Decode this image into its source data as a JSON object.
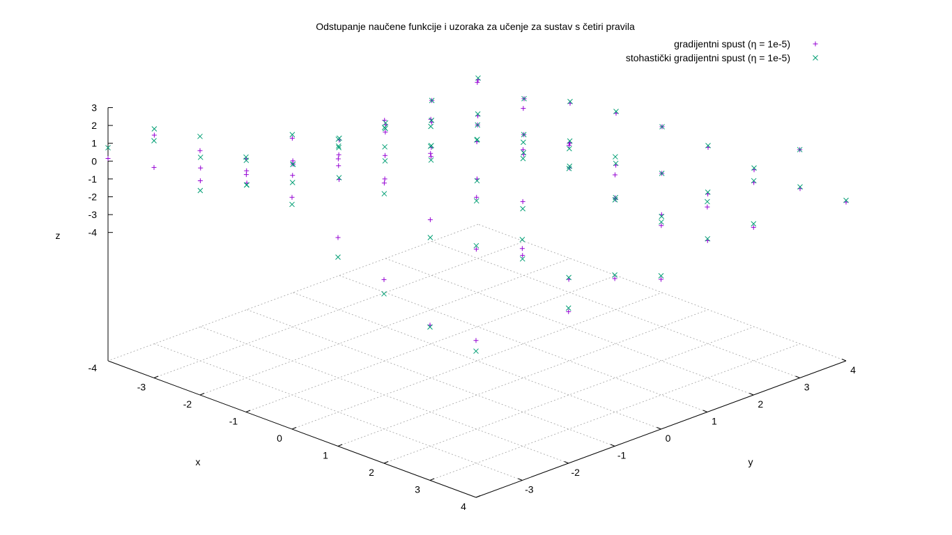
{
  "chart_data": {
    "type": "scatter",
    "title": "Odstupanje naučene funkcije i uzoraka za učenje za sustav s četiri pravila",
    "xlabel": "x",
    "ylabel": "y",
    "zlabel": "z",
    "xlim": [
      -4,
      4
    ],
    "ylim": [
      -4,
      4
    ],
    "zlim": [
      -4,
      3
    ],
    "x_ticks": [
      "-3",
      "-2",
      "-1",
      "0",
      "1",
      "2",
      "3",
      "4"
    ],
    "y_ticks": [
      "-3",
      "-2",
      "-1",
      "0",
      "1",
      "2",
      "3",
      "4"
    ],
    "z_ticks": [
      "3",
      "2",
      "1",
      "0",
      "-1",
      "-2",
      "-3",
      "-4"
    ],
    "floor_label": "-4",
    "grid": true,
    "legend_position": "top-right",
    "colors": {
      "series1": "#9400d3",
      "series2": "#009e73"
    },
    "series": [
      {
        "name": "gradijentni spust (η = 1e-5)",
        "marker": "+",
        "points": [
          [
            -4,
            -4,
            0.15
          ],
          [
            -3,
            -4,
            0.6
          ],
          [
            -2,
            -4,
            2.5
          ],
          [
            -1,
            -4,
            3.0
          ],
          [
            0,
            -4,
            1.8
          ],
          [
            1,
            -4,
            0.5
          ],
          [
            2,
            -4,
            -0.9
          ],
          [
            3,
            -4,
            -2.5
          ],
          [
            4,
            -4,
            -2.4
          ],
          [
            -4,
            -3,
            0.5
          ],
          [
            -3,
            -3,
            -1.1
          ],
          [
            -2,
            -3,
            0.2
          ],
          [
            -1,
            -3,
            3.2
          ],
          [
            0,
            -3,
            3.0
          ],
          [
            1,
            -3,
            2.6
          ],
          [
            2,
            -3,
            1.5
          ],
          [
            3,
            -3,
            0.8
          ],
          [
            4,
            -3,
            1.8
          ],
          [
            -4,
            -2,
            -2.3
          ],
          [
            -3,
            -2,
            -1.5
          ],
          [
            -2,
            -2,
            -0.8
          ],
          [
            -1,
            -2,
            0.7
          ],
          [
            0,
            -2,
            4.2
          ],
          [
            1,
            -2,
            3.3
          ],
          [
            2,
            -2,
            1.8
          ],
          [
            3,
            -2,
            -0.5
          ],
          [
            4,
            -2,
            -2.7
          ],
          [
            -4,
            -1,
            -4.1
          ],
          [
            -3,
            -1,
            -1.9
          ],
          [
            -2,
            -1,
            -0.6
          ],
          [
            -1,
            -1,
            -1.0
          ],
          [
            0,
            -1,
            3.3
          ],
          [
            1,
            -1,
            3.0
          ],
          [
            2,
            -1,
            0.6
          ],
          [
            3,
            -1,
            -2.8
          ],
          [
            4,
            -1,
            -1.8
          ],
          [
            -4,
            0,
            -4.0
          ],
          [
            -3,
            0,
            -3.9
          ],
          [
            -2,
            0,
            -1.6
          ],
          [
            -1,
            0,
            -0.7
          ],
          [
            0,
            0,
            -1.0
          ],
          [
            1,
            0,
            1.6
          ],
          [
            2,
            0,
            2.8
          ],
          [
            3,
            0,
            2.1
          ],
          [
            4,
            0,
            -2.8
          ],
          [
            -4,
            1,
            -3.6
          ],
          [
            -3,
            1,
            -2.2
          ],
          [
            -2,
            1,
            -2.1
          ],
          [
            -1,
            1,
            2.5
          ],
          [
            0,
            1,
            2.0
          ],
          [
            1,
            1,
            1.0
          ],
          [
            2,
            1,
            -1.1
          ],
          [
            3,
            1,
            -1.7
          ],
          [
            4,
            1,
            0.3
          ],
          [
            -4,
            2,
            -3.7
          ],
          [
            -3,
            2,
            -2.6
          ],
          [
            -2,
            2,
            -1.8
          ],
          [
            -1,
            2,
            -2.5
          ],
          [
            0,
            2,
            -2.3
          ],
          [
            1,
            2,
            -3.1
          ],
          [
            2,
            2,
            -3.0
          ],
          [
            3,
            2,
            -3.5
          ],
          [
            4,
            2,
            -1.8
          ],
          [
            -4,
            3,
            -3.3
          ],
          [
            -3,
            3,
            -3.2
          ],
          [
            -2,
            3,
            -3.3
          ],
          [
            -1,
            3,
            -2.8
          ],
          [
            0,
            3,
            -3.1
          ],
          [
            1,
            3,
            -2.6
          ],
          [
            2,
            3,
            -2.8
          ],
          [
            3,
            3,
            -1.2
          ],
          [
            4,
            3,
            1.6
          ],
          [
            -4,
            4,
            -3.1
          ],
          [
            -3,
            4,
            -3.2
          ],
          [
            -2,
            4,
            -2.5
          ],
          [
            -1,
            4,
            -2.1
          ],
          [
            0,
            4,
            -1.9
          ],
          [
            1,
            4,
            -2.1
          ],
          [
            2,
            4,
            -2.4
          ],
          [
            3,
            4,
            -2.5
          ],
          [
            4,
            4,
            -2.3
          ]
        ]
      },
      {
        "name": "stohastički gradijentni spust (η = 1e-5)",
        "marker": "×",
        "points": [
          [
            -4,
            -4,
            0.75
          ],
          [
            -3,
            -4,
            2.1
          ],
          [
            -2,
            -4,
            3.3
          ],
          [
            -1,
            -4,
            3.1
          ],
          [
            0,
            -4,
            1.4
          ],
          [
            1,
            -4,
            -0.6
          ],
          [
            2,
            -4,
            -1.7
          ],
          [
            3,
            -4,
            -2.6
          ],
          [
            4,
            -4,
            -3.0
          ],
          [
            -4,
            -3,
            0.85
          ],
          [
            -3,
            -3,
            -1.65
          ],
          [
            -2,
            -3,
            1.0
          ],
          [
            -1,
            -3,
            3.4
          ],
          [
            0,
            -3,
            4.1
          ],
          [
            1,
            -3,
            2.0
          ],
          [
            2,
            -3,
            0.5
          ],
          [
            3,
            -3,
            1.0
          ],
          [
            4,
            -3,
            2.3
          ],
          [
            -4,
            -2,
            -1.7
          ],
          [
            -3,
            -2,
            -2.3
          ],
          [
            -2,
            -2,
            -1.2
          ],
          [
            -1,
            -2,
            1.8
          ],
          [
            0,
            -2,
            3.8
          ],
          [
            1,
            -2,
            3.7
          ],
          [
            2,
            -2,
            1.6
          ],
          [
            3,
            -2,
            -0.7
          ],
          [
            4,
            -2,
            -2.5
          ],
          [
            -4,
            -1,
            -4.2
          ],
          [
            -3,
            -1,
            -2.1
          ],
          [
            -2,
            -1,
            -0.2
          ],
          [
            -1,
            -1,
            0.8
          ],
          [
            0,
            -1,
            2.9
          ],
          [
            1,
            -1,
            3.1
          ],
          [
            2,
            -1,
            0.2
          ],
          [
            3,
            -1,
            -2.7
          ],
          [
            4,
            -1,
            -1.6
          ],
          [
            -4,
            0,
            -4.0
          ],
          [
            -3,
            0,
            -3.8
          ],
          [
            -2,
            0,
            -1.9
          ],
          [
            -1,
            0,
            -0.9
          ],
          [
            0,
            0,
            -1.1
          ],
          [
            1,
            0,
            1.1
          ],
          [
            2,
            0,
            1.5
          ],
          [
            3,
            0,
            0.7
          ],
          [
            4,
            0,
            -2.6
          ],
          [
            -4,
            1,
            -3.5
          ],
          [
            -3,
            1,
            -2.0
          ],
          [
            -2,
            1,
            -2.0
          ],
          [
            -1,
            1,
            -0.7
          ],
          [
            0,
            1,
            0.1
          ],
          [
            1,
            1,
            0.7
          ],
          [
            2,
            1,
            1.2
          ],
          [
            3,
            1,
            -1.5
          ],
          [
            4,
            1,
            0.6
          ],
          [
            -4,
            2,
            -3.6
          ],
          [
            -3,
            2,
            -2.5
          ],
          [
            -2,
            2,
            -1.8
          ],
          [
            -1,
            2,
            -2.4
          ],
          [
            0,
            2,
            -2.2
          ],
          [
            1,
            2,
            -3.0
          ],
          [
            2,
            2,
            -3.1
          ],
          [
            3,
            2,
            -3.4
          ],
          [
            4,
            2,
            -1.6
          ],
          [
            -4,
            3,
            -3.3
          ],
          [
            -3,
            3,
            -3.1
          ],
          [
            -2,
            3,
            -3.3
          ],
          [
            -1,
            3,
            -2.7
          ],
          [
            0,
            3,
            -3.0
          ],
          [
            1,
            3,
            -2.6
          ],
          [
            2,
            3,
            -2.7
          ],
          [
            3,
            3,
            -1.1
          ],
          [
            4,
            3,
            1.6
          ],
          [
            -4,
            4,
            -3.0
          ],
          [
            -3,
            4,
            -3.2
          ],
          [
            -2,
            4,
            -2.4
          ],
          [
            -1,
            4,
            -2.0
          ],
          [
            0,
            4,
            -1.9
          ],
          [
            1,
            4,
            -2.0
          ],
          [
            2,
            4,
            -2.3
          ],
          [
            3,
            4,
            -2.4
          ],
          [
            4,
            4,
            -2.2
          ]
        ]
      }
    ]
  }
}
